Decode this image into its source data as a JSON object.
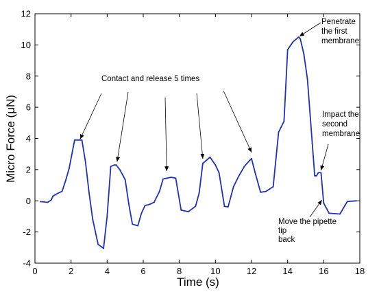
{
  "chart_data": {
    "type": "line",
    "xlabel": "Time (s)",
    "ylabel": "Micro Force (μN)",
    "xlim": [
      0,
      18
    ],
    "ylim": [
      -4,
      12
    ],
    "xticks": [
      0,
      2,
      4,
      6,
      8,
      10,
      12,
      14,
      16,
      18
    ],
    "yticks": [
      -4,
      -2,
      0,
      2,
      4,
      6,
      8,
      10,
      12
    ],
    "grid": false,
    "line_color": "#1f2fb8",
    "series": [
      {
        "x": [
          0.3,
          0.7,
          0.9,
          1.0,
          1.3,
          1.5,
          1.7,
          1.9,
          2.2,
          2.4,
          2.5,
          2.6,
          2.8,
          3.0,
          3.2,
          3.5,
          3.8,
          4.0,
          4.2,
          4.4,
          4.5,
          4.7,
          5.0,
          5.2,
          5.4,
          5.7,
          5.9,
          6.1,
          6.3,
          6.6,
          6.9,
          7.1,
          7.3,
          7.5,
          7.6,
          7.8,
          8.1,
          8.5,
          8.9,
          9.1,
          9.3,
          9.5,
          9.7,
          10.0,
          10.2,
          10.5,
          10.7,
          11.0,
          11.3,
          11.6,
          11.9,
          12.0,
          12.2,
          12.5,
          12.8,
          13.2,
          13.5,
          13.8,
          14.0,
          14.3,
          14.6,
          14.7,
          14.9,
          15.1,
          15.5,
          15.6,
          15.7,
          15.85,
          16.0,
          16.3,
          16.9,
          17.3,
          17.8
        ],
        "y": [
          -0.05,
          -0.1,
          0.05,
          0.3,
          0.5,
          0.6,
          1.3,
          2.1,
          3.9,
          3.9,
          3.9,
          3.9,
          2.5,
          0.5,
          -1.2,
          -2.8,
          -3.05,
          -1.0,
          2.2,
          2.3,
          2.3,
          2.0,
          1.35,
          -0.2,
          -1.5,
          -1.6,
          -0.8,
          -0.3,
          -0.25,
          -0.1,
          0.6,
          1.4,
          1.45,
          1.5,
          1.5,
          1.45,
          -0.6,
          -0.7,
          -0.35,
          0.5,
          2.4,
          2.6,
          2.8,
          2.3,
          1.8,
          -0.35,
          -0.4,
          0.9,
          1.6,
          2.2,
          2.6,
          2.7,
          1.8,
          0.55,
          0.6,
          0.9,
          4.4,
          5.1,
          9.7,
          10.2,
          10.5,
          10.4,
          9.4,
          7.8,
          1.6,
          1.6,
          1.8,
          1.8,
          -0.15,
          -0.8,
          -0.85,
          -0.05,
          0.0
        ]
      }
    ],
    "annotations": [
      {
        "lines": [
          "Contact and release 5 times"
        ],
        "targets": [
          [
            2.5,
            3.95
          ],
          [
            4.55,
            2.5
          ],
          [
            7.3,
            1.9
          ],
          [
            9.3,
            2.7
          ],
          [
            12.0,
            3.1
          ]
        ]
      },
      {
        "lines": [
          "Penetrate",
          "the first",
          "membrane"
        ],
        "targets": [
          [
            14.65,
            10.55
          ]
        ]
      },
      {
        "lines": [
          "Impact the",
          "second",
          "membrane"
        ],
        "targets": [
          [
            15.85,
            1.95
          ]
        ]
      },
      {
        "lines": [
          "Move the pipette",
          "tip",
          "back"
        ],
        "targets": [
          [
            15.9,
            0.05
          ]
        ]
      }
    ]
  }
}
